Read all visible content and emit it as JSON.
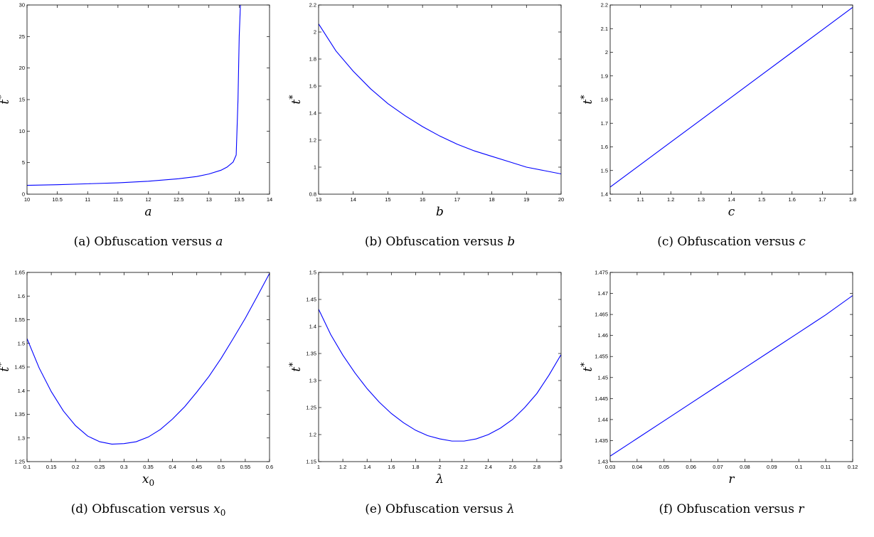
{
  "figure": {
    "panels": [
      {
        "caption": {
          "prefix": "(a) Obfuscation versus ",
          "var": "a"
        },
        "chart_data": {
          "type": "line",
          "xlabel": "a",
          "ylabel": "t*",
          "xlim": [
            10,
            14
          ],
          "ylim": [
            0,
            30
          ],
          "xticks": [
            "10",
            "10.5",
            "11",
            "11.5",
            "12",
            "12.5",
            "13",
            "13.5",
            "14"
          ],
          "yticks": [
            "0",
            "5",
            "10",
            "15",
            "20",
            "25",
            "30"
          ],
          "x": [
            10,
            10.5,
            11,
            11.5,
            12,
            12.5,
            12.8,
            13,
            13.2,
            13.3,
            13.4,
            13.45,
            13.48,
            13.5,
            13.52
          ],
          "y": [
            1.4,
            1.5,
            1.65,
            1.8,
            2.05,
            2.45,
            2.8,
            3.2,
            3.8,
            4.3,
            5.1,
            6.2,
            15,
            25,
            30
          ]
        }
      },
      {
        "caption": {
          "prefix": "(b) Obfuscation versus ",
          "var": "b"
        },
        "chart_data": {
          "type": "line",
          "xlabel": "b",
          "ylabel": "t*",
          "xlim": [
            13,
            20
          ],
          "ylim": [
            0.8,
            2.2
          ],
          "xticks": [
            "13",
            "14",
            "15",
            "16",
            "17",
            "18",
            "19",
            "20"
          ],
          "yticks": [
            "0.8",
            "1",
            "1.2",
            "1.4",
            "1.6",
            "1.8",
            "2",
            "2.2"
          ],
          "x": [
            13,
            13.5,
            14,
            14.5,
            15,
            15.5,
            16,
            16.5,
            17,
            17.5,
            18,
            18.5,
            19,
            19.5,
            20
          ],
          "y": [
            2.06,
            1.86,
            1.71,
            1.58,
            1.47,
            1.38,
            1.3,
            1.23,
            1.17,
            1.12,
            1.08,
            1.04,
            1.0,
            0.975,
            0.95
          ]
        }
      },
      {
        "caption": {
          "prefix": "(c) Obfuscation versus ",
          "var": "c"
        },
        "chart_data": {
          "type": "line",
          "xlabel": "c",
          "ylabel": "t*",
          "xlim": [
            1,
            1.8
          ],
          "ylim": [
            1.4,
            2.2
          ],
          "xticks": [
            "1",
            "1.1",
            "1.2",
            "1.3",
            "1.4",
            "1.5",
            "1.6",
            "1.7",
            "1.8"
          ],
          "yticks": [
            "1.4",
            "1.5",
            "1.6",
            "1.7",
            "1.8",
            "1.9",
            "2",
            "2.1",
            "2.2"
          ],
          "x": [
            1,
            1.1,
            1.2,
            1.3,
            1.4,
            1.5,
            1.6,
            1.7,
            1.8
          ],
          "y": [
            1.43,
            1.525,
            1.62,
            1.715,
            1.81,
            1.905,
            2.0,
            2.095,
            2.19
          ]
        }
      },
      {
        "caption": {
          "prefix": "(d) Obfuscation versus ",
          "var": "x",
          "sub": "0"
        },
        "chart_data": {
          "type": "line",
          "xlabel": "x0",
          "ylabel": "t*",
          "xlim": [
            0.1,
            0.6
          ],
          "ylim": [
            1.25,
            1.65
          ],
          "xticks": [
            "0.1",
            "0.15",
            "0.2",
            "0.25",
            "0.3",
            "0.35",
            "0.4",
            "0.45",
            "0.5",
            "0.55",
            "0.6"
          ],
          "yticks": [
            "1.25",
            "1.3",
            "1.35",
            "1.4",
            "1.45",
            "1.5",
            "1.55",
            "1.6",
            "1.65"
          ],
          "x": [
            0.1,
            0.125,
            0.15,
            0.175,
            0.2,
            0.225,
            0.25,
            0.275,
            0.3,
            0.325,
            0.35,
            0.375,
            0.4,
            0.425,
            0.45,
            0.475,
            0.5,
            0.525,
            0.55,
            0.575,
            0.6
          ],
          "y": [
            1.51,
            1.448,
            1.398,
            1.357,
            1.326,
            1.304,
            1.292,
            1.287,
            1.288,
            1.292,
            1.302,
            1.318,
            1.34,
            1.366,
            1.397,
            1.43,
            1.468,
            1.51,
            1.553,
            1.6,
            1.648
          ]
        }
      },
      {
        "caption": {
          "prefix": "(e) Obfuscation versus ",
          "var": "λ"
        },
        "chart_data": {
          "type": "line",
          "xlabel": "λ",
          "ylabel": "t*",
          "xlim": [
            1,
            3
          ],
          "ylim": [
            1.15,
            1.5
          ],
          "xticks": [
            "1",
            "1.2",
            "1.4",
            "1.6",
            "1.8",
            "2",
            "2.2",
            "2.4",
            "2.6",
            "2.8",
            "3"
          ],
          "yticks": [
            "1.15",
            "1.2",
            "1.25",
            "1.3",
            "1.35",
            "1.4",
            "1.45",
            "1.5"
          ],
          "x": [
            1,
            1.1,
            1.2,
            1.3,
            1.4,
            1.5,
            1.6,
            1.7,
            1.8,
            1.9,
            2,
            2.1,
            2.2,
            2.3,
            2.4,
            2.5,
            2.6,
            2.7,
            2.8,
            2.9,
            3
          ],
          "y": [
            1.432,
            1.385,
            1.347,
            1.314,
            1.285,
            1.26,
            1.239,
            1.222,
            1.208,
            1.198,
            1.192,
            1.188,
            1.188,
            1.192,
            1.2,
            1.212,
            1.228,
            1.25,
            1.276,
            1.31,
            1.348
          ]
        }
      },
      {
        "caption": {
          "prefix": "(f) Obfuscation versus ",
          "var": "r"
        },
        "chart_data": {
          "type": "line",
          "xlabel": "r",
          "ylabel": "t*",
          "xlim": [
            0.03,
            0.12
          ],
          "ylim": [
            1.43,
            1.475
          ],
          "xticks": [
            "0.03",
            "0.04",
            "0.05",
            "0.06",
            "0.07",
            "0.08",
            "0.09",
            "0.1",
            "0.11",
            "0.12"
          ],
          "yticks": [
            "1.43",
            "1.435",
            "1.44",
            "1.445",
            "1.45",
            "1.455",
            "1.46",
            "1.465",
            "1.47",
            "1.475"
          ],
          "x": [
            0.03,
            0.04,
            0.05,
            0.06,
            0.07,
            0.08,
            0.09,
            0.1,
            0.11,
            0.12
          ],
          "y": [
            1.4313,
            1.4355,
            1.4397,
            1.4439,
            1.4481,
            1.4523,
            1.4565,
            1.4607,
            1.4649,
            1.4695
          ]
        }
      }
    ]
  }
}
